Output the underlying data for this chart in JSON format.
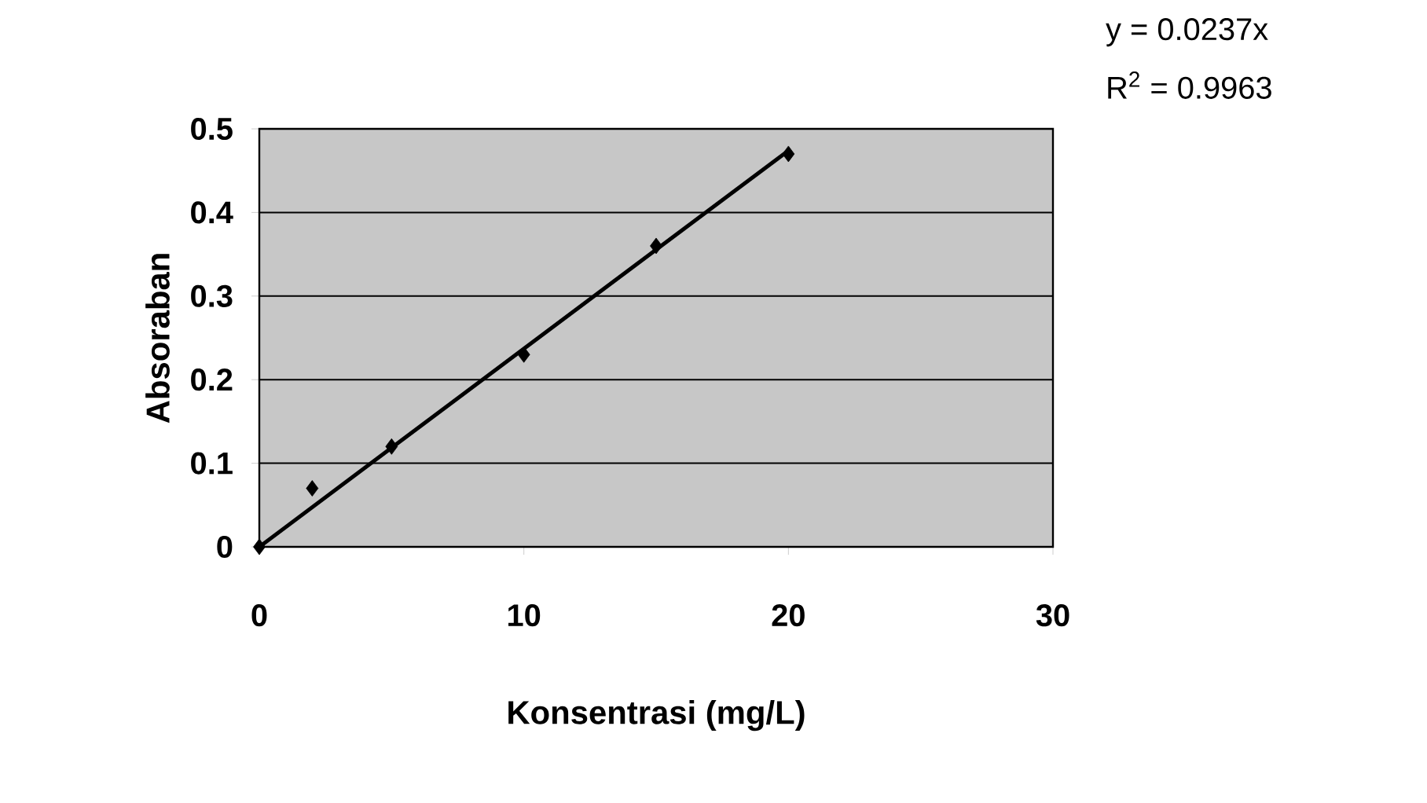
{
  "chart_data": {
    "type": "scatter",
    "xlabel": "Konsentrasi (mg/L)",
    "ylabel": "Absoraban",
    "series": [
      {
        "color": "#000000",
        "marker": "diamond",
        "x": [
          0,
          2,
          5,
          10,
          15,
          20
        ],
        "values": [
          0,
          0.07,
          0.12,
          0.23,
          0.36,
          0.47
        ]
      },
      {
        "type": "line",
        "color": "#000000",
        "marker": "none",
        "line_style": "solid",
        "x": [
          0,
          20
        ],
        "values": [
          0,
          0.474
        ]
      }
    ],
    "xlim": [
      0,
      30
    ],
    "ylim": [
      0,
      0.5
    ],
    "xticks": [
      0,
      10,
      20,
      30
    ],
    "yticks": [
      0,
      0.1,
      0.2,
      0.3,
      0.4,
      0.5
    ],
    "grid": "y",
    "annotations": [
      "y = 0.0237x",
      "R$^{2}$ = 0.9963"
    ]
  }
}
